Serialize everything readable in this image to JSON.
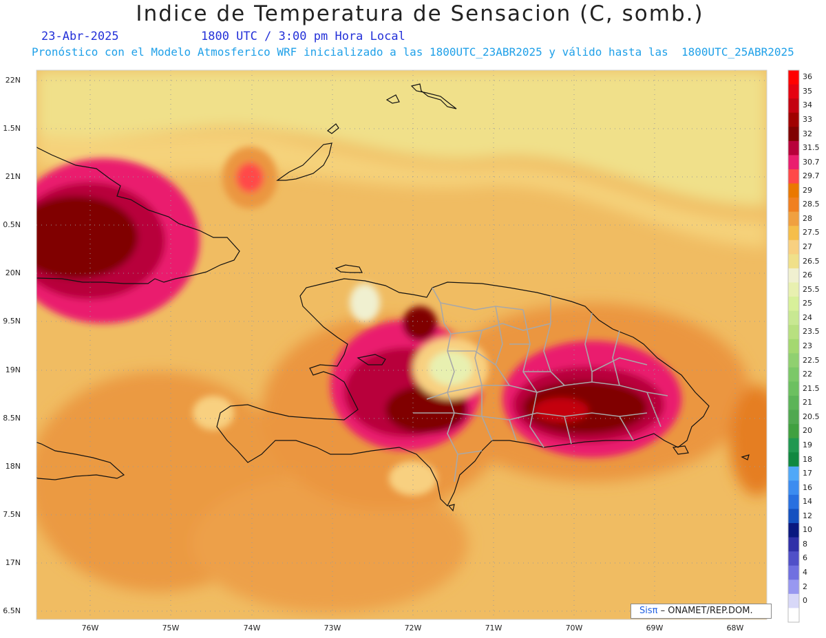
{
  "header": {
    "title": "Indice de Temperatura de Sensacion (C, somb.)",
    "date": "23-Abr-2025",
    "time": "1800 UTC / 3:00 pm Hora Local",
    "model_line": "Pronóstico con el Modelo Atmosferico WRF inicializado a las 1800UTC_23ABR2025 y válido hasta las  1800UTC_25ABR2025"
  },
  "map": {
    "lat_labels": [
      "22N",
      "1.5N",
      "21N",
      "0.5N",
      "20N",
      "9.5N",
      "19N",
      "8.5N",
      "18N",
      "7.5N",
      "17N",
      "6.5N"
    ],
    "lon_labels": [
      "76W",
      "75W",
      "74W",
      "73W",
      "72W",
      "71W",
      "70W",
      "69W",
      "68W"
    ],
    "base_color": "#f0bc62"
  },
  "colorbar": {
    "labels": [
      "36",
      "35",
      "34",
      "33",
      "32",
      "31.5",
      "30.7",
      "29.7",
      "29",
      "28.5",
      "28",
      "27.5",
      "27",
      "26.5",
      "26",
      "25.5",
      "25",
      "24",
      "23.5",
      "23",
      "22.5",
      "22",
      "21.5",
      "21",
      "20.5",
      "20",
      "19",
      "18",
      "17",
      "16",
      "14",
      "12",
      "10",
      "8",
      "6",
      "4",
      "2",
      "0"
    ],
    "colors": [
      "#ff0000",
      "#e50010",
      "#c40010",
      "#a00000",
      "#800000",
      "#b8003a",
      "#ea1e6e",
      "#ff4848",
      "#ea7800",
      "#f08020",
      "#f0a040",
      "#f5be4a",
      "#f8d080",
      "#f0e08a",
      "#f0f0d0",
      "#e8f0b0",
      "#d8f09a",
      "#c8e892",
      "#b8e080",
      "#a4d870",
      "#90d070",
      "#7cc868",
      "#6cc060",
      "#5cb458",
      "#50a850",
      "#40a040",
      "#209850",
      "#108840",
      "#50a8f8",
      "#3c8cf0",
      "#2870e0",
      "#1450c0",
      "#0a1880",
      "#3030a8",
      "#5050c8",
      "#7070e0",
      "#9898f0",
      "#d8d8f8",
      "#ffffff"
    ]
  },
  "credit": {
    "brand": "Sisπ",
    "text": "– ONAMET/REP.DOM."
  }
}
